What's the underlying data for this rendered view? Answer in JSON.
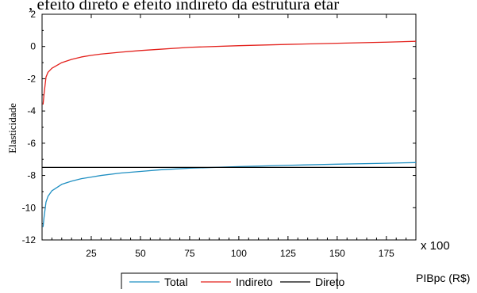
{
  "page": {
    "title": ", efeito direto e efeito indireto da estrutura etár"
  },
  "chart_data": {
    "type": "line",
    "title": "",
    "xlabel": "PIBpc (R$)",
    "ylabel": "Elasticidade",
    "x_multiplier_label": "x 100",
    "xlim": [
      0,
      190
    ],
    "ylim": [
      -12,
      2
    ],
    "x_ticks": [
      25,
      50,
      75,
      100,
      125,
      150,
      175
    ],
    "y_ticks": [
      2,
      0,
      -2,
      -4,
      -6,
      -8,
      -10,
      -12
    ],
    "legend_placement": "bottom",
    "grid": false,
    "series": [
      {
        "name": "Total",
        "color": "#1f8fc2",
        "x": [
          0.5,
          1,
          2,
          3,
          5,
          10,
          15,
          20,
          25,
          30,
          40,
          50,
          60,
          75,
          100,
          125,
          150,
          175,
          190
        ],
        "y": [
          -11.2,
          -10.6,
          -9.65,
          -9.3,
          -8.95,
          -8.55,
          -8.35,
          -8.2,
          -8.1,
          -8.0,
          -7.85,
          -7.75,
          -7.65,
          -7.55,
          -7.45,
          -7.37,
          -7.3,
          -7.24,
          -7.2
        ]
      },
      {
        "name": "Indireto",
        "color": "#e3201b",
        "x": [
          0.5,
          1,
          2,
          3,
          5,
          10,
          15,
          20,
          25,
          30,
          40,
          50,
          60,
          75,
          100,
          125,
          150,
          175,
          190
        ],
        "y": [
          -3.6,
          -2.95,
          -1.9,
          -1.6,
          -1.35,
          -1.0,
          -0.8,
          -0.65,
          -0.55,
          -0.47,
          -0.35,
          -0.25,
          -0.17,
          -0.05,
          0.05,
          0.13,
          0.2,
          0.27,
          0.32
        ]
      },
      {
        "name": "Direto",
        "color": "#000000",
        "x": [
          0,
          190
        ],
        "y": [
          -7.5,
          -7.5
        ]
      }
    ]
  }
}
